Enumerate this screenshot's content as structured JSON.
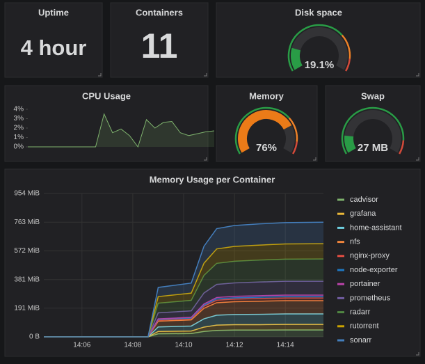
{
  "panels": {
    "uptime": {
      "title": "Uptime",
      "value": "4 hour"
    },
    "containers": {
      "title": "Containers",
      "value": 11
    },
    "disk": {
      "title": "Disk space",
      "value": 19.1,
      "value_label": "19.1%",
      "range": [
        0,
        100
      ],
      "color": "#299c46",
      "thresholds": [
        {
          "to": 70,
          "color": "#299c46"
        },
        {
          "to": 90,
          "color": "#ed8128"
        },
        {
          "to": 100,
          "color": "#d44a3a"
        }
      ]
    },
    "memory": {
      "title": "Memory",
      "value": 76,
      "value_label": "76%",
      "range": [
        0,
        100
      ],
      "color": "#eb7b18",
      "thresholds": [
        {
          "to": 70,
          "color": "#299c46"
        },
        {
          "to": 90,
          "color": "#ed8128"
        },
        {
          "to": 100,
          "color": "#d44a3a"
        }
      ]
    },
    "swap": {
      "title": "Swap",
      "value": 27,
      "value_label": "27 MB",
      "range": [
        0,
        180
      ],
      "color": "#299c46",
      "thresholds": [
        {
          "to": 160,
          "color": "#299c46"
        },
        {
          "to": 180,
          "color": "#d44a3a"
        }
      ]
    }
  },
  "chart_data": [
    {
      "type": "line",
      "title": "CPU Usage",
      "color": "#7eb26d",
      "values": [
        0,
        0,
        0,
        0,
        0,
        0,
        0,
        0,
        0,
        3.5,
        1.5,
        1.9,
        1.2,
        0,
        2.9,
        2.0,
        2.6,
        2.7,
        1.5,
        1.2,
        1.4,
        1.6,
        1.7
      ],
      "ylim": [
        0,
        4
      ],
      "yticks": [
        {
          "value": 0,
          "label": "0%"
        },
        {
          "value": 1,
          "label": "1%"
        },
        {
          "value": 2,
          "label": "2%"
        },
        {
          "value": 3,
          "label": "3%"
        },
        {
          "value": 4,
          "label": "4%"
        }
      ]
    },
    {
      "type": "stacked_area",
      "title": "Memory Usage per Container",
      "x": [
        844.5,
        848.6,
        849.0,
        850.3,
        850.8,
        851.3,
        852.0,
        853.0,
        854.0,
        855.5
      ],
      "xlim": [
        844.5,
        855.5
      ],
      "xticks": [
        {
          "value": 846,
          "label": "14:06"
        },
        {
          "value": 848,
          "label": "14:08"
        },
        {
          "value": 850,
          "label": "14:10"
        },
        {
          "value": 852,
          "label": "14:12"
        },
        {
          "value": 854,
          "label": "14:14"
        }
      ],
      "ylim": [
        0,
        954
      ],
      "yticks": [
        {
          "value": 0,
          "label": "0 B"
        },
        {
          "value": 191,
          "label": "191 MiB"
        },
        {
          "value": 381,
          "label": "381 MiB"
        },
        {
          "value": 572,
          "label": "572 MiB"
        },
        {
          "value": 763,
          "label": "763 MiB"
        },
        {
          "value": 954,
          "label": "954 MiB"
        }
      ],
      "grid": true,
      "series": [
        {
          "name": "cadvisor",
          "color": "#7eb26d",
          "values": [
            0,
            0,
            20,
            22,
            36,
            43,
            45,
            45,
            46,
            46
          ]
        },
        {
          "name": "grafana",
          "color": "#eab839",
          "values": [
            0,
            0,
            16,
            17,
            29,
            35,
            36,
            36,
            37,
            37
          ]
        },
        {
          "name": "home-assistant",
          "color": "#6ed0e0",
          "values": [
            0,
            0,
            30,
            33,
            55,
            66,
            68,
            69,
            70,
            70
          ]
        },
        {
          "name": "nfs",
          "color": "#ef843c",
          "values": [
            0,
            0,
            38,
            41,
            70,
            83,
            85,
            87,
            88,
            88
          ]
        },
        {
          "name": "nginx-proxy",
          "color": "#e24d42",
          "values": [
            0,
            0,
            8,
            8,
            14,
            17,
            17,
            18,
            18,
            18
          ]
        },
        {
          "name": "node-exporter",
          "color": "#1f78c1",
          "values": [
            0,
            0,
            4,
            4,
            7,
            9,
            9,
            9,
            9,
            9
          ]
        },
        {
          "name": "portainer",
          "color": "#ba43a9",
          "values": [
            0,
            0,
            4,
            5,
            8,
            9,
            10,
            10,
            10,
            10
          ]
        },
        {
          "name": "prometheus",
          "color": "#705da0",
          "values": [
            0,
            0,
            40,
            43,
            73,
            87,
            89,
            91,
            92,
            92
          ]
        },
        {
          "name": "radarr",
          "color": "#508642",
          "values": [
            0,
            0,
            64,
            70,
            117,
            140,
            144,
            146,
            147,
            148
          ]
        },
        {
          "name": "rutorrent",
          "color": "#cca300",
          "values": [
            0,
            0,
            44,
            48,
            81,
            96,
            99,
            100,
            101,
            102
          ]
        },
        {
          "name": "sonarr",
          "color": "#447ebc",
          "values": [
            0,
            0,
            61,
            67,
            113,
            135,
            139,
            141,
            142,
            143
          ]
        }
      ]
    }
  ]
}
